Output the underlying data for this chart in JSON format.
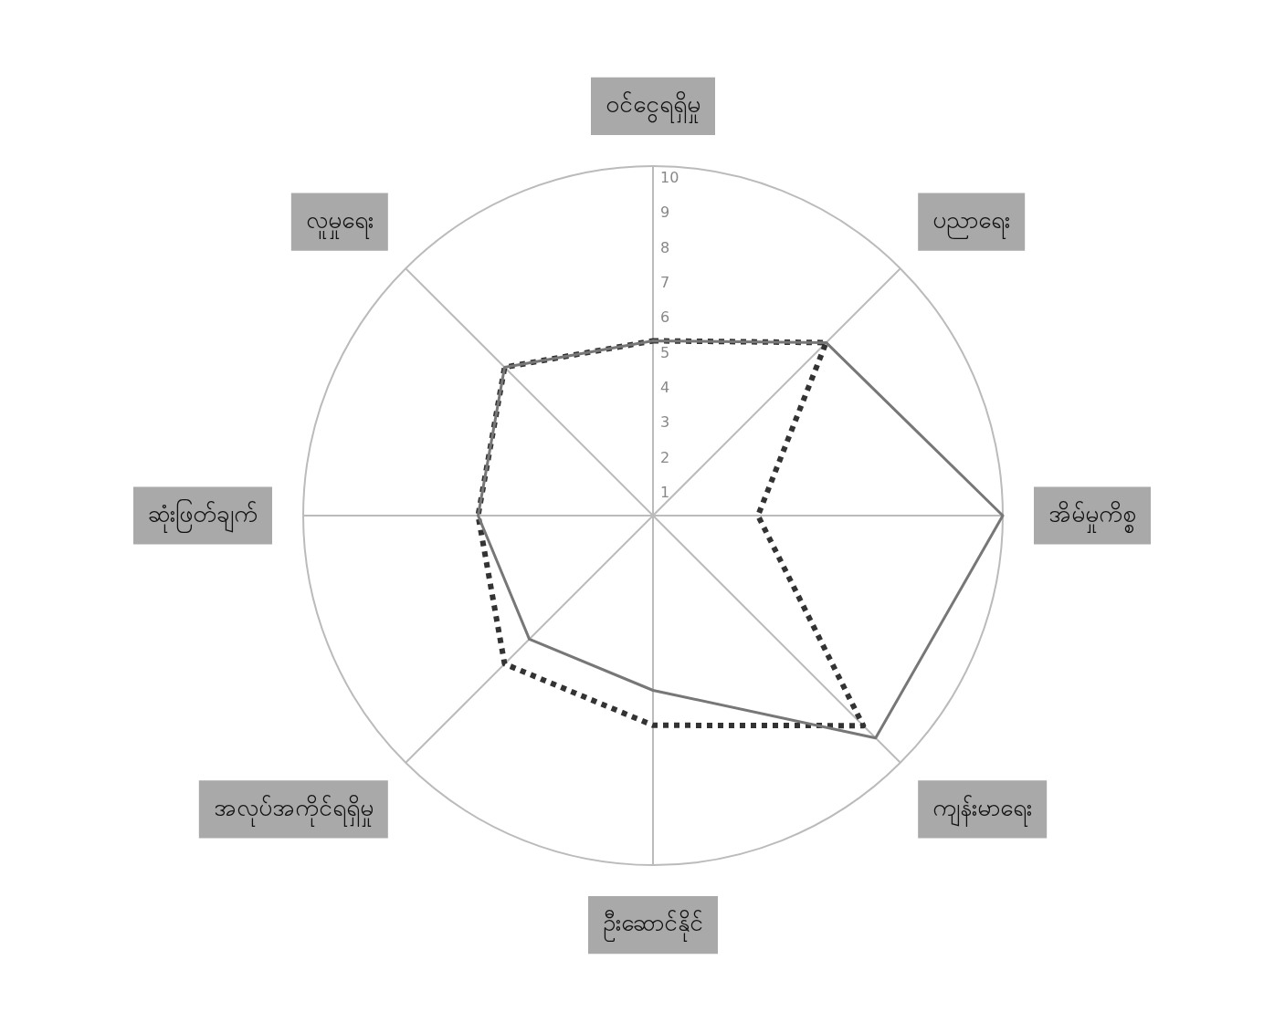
{
  "chart_data": {
    "type": "radar",
    "categories": [
      "ဝင်ငွေရရှိမှု",
      "ပညာရေး",
      "အိမ်မှုကိစ္စ",
      "ကျန်းမာရေး",
      "ဦးဆောင်နိုင်",
      "အလုပ်အကိုင်ရရှိမှု",
      "ဆုံးဖြတ်ချက်",
      "လူမှုရေး"
    ],
    "series": [
      {
        "color": "#777777",
        "line_style": "solid",
        "values": [
          5,
          7,
          10,
          9,
          5,
          5,
          5,
          6
        ]
      },
      {
        "color": "#333333",
        "line_style": "dotted",
        "values": [
          5,
          7,
          3,
          8.5,
          6,
          6,
          5,
          6
        ]
      }
    ],
    "ylim": [
      0,
      10
    ],
    "yticks": [
      1,
      2,
      3,
      4,
      5,
      6,
      7,
      8,
      9,
      10
    ],
    "marker": "none",
    "legend": false
  }
}
